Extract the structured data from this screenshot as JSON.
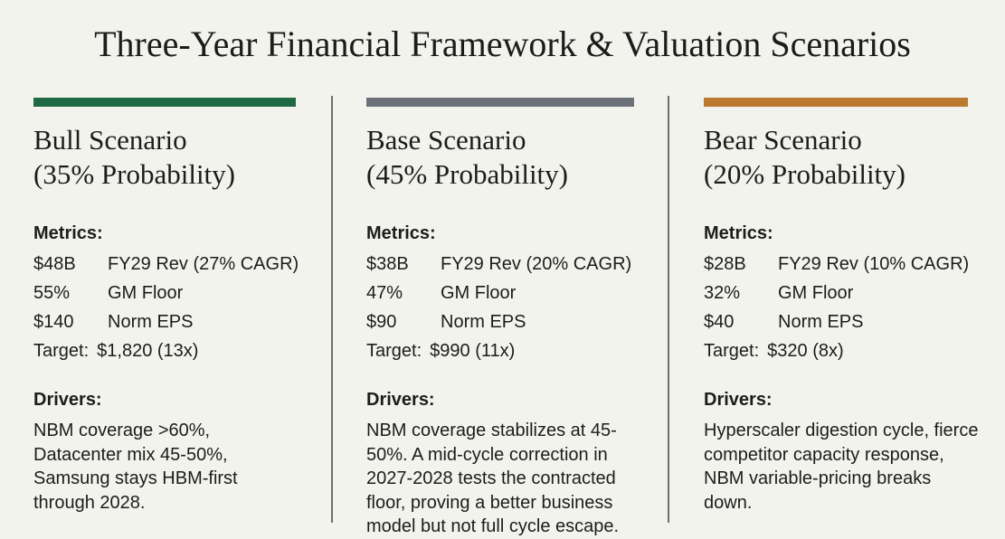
{
  "title": "Three-Year Financial Framework & Valuation Scenarios",
  "colors": {
    "background": "#f3f3ee",
    "divider": "#6f6f6f",
    "bull_accent": "#1f6a45",
    "base_accent": "#6c7078",
    "bear_accent": "#bb7a2e"
  },
  "labels": {
    "metrics_heading": "Metrics:",
    "drivers_heading": "Drivers:",
    "target_label": "Target:"
  },
  "scenarios": [
    {
      "name": "Bull Scenario",
      "probability": "(35% Probability)",
      "metrics": [
        {
          "value": "$48B",
          "label": "FY29 Rev (27% CAGR)"
        },
        {
          "value": "55%",
          "label": "GM Floor"
        },
        {
          "value": "$140",
          "label": "Norm EPS"
        }
      ],
      "target": "$1,820 (13x)",
      "drivers": "NBM coverage >60%, Datacenter mix 45-50%, Samsung stays HBM-first through 2028."
    },
    {
      "name": "Base Scenario",
      "probability": "(45% Probability)",
      "metrics": [
        {
          "value": "$38B",
          "label": "FY29 Rev (20% CAGR)"
        },
        {
          "value": "47%",
          "label": "GM Floor"
        },
        {
          "value": "$90",
          "label": "Norm EPS"
        }
      ],
      "target": "$990 (11x)",
      "drivers": "NBM coverage stabilizes at 45-50%. A mid-cycle correction in 2027-2028 tests the contracted floor, proving a better business model but not full cycle escape."
    },
    {
      "name": "Bear Scenario",
      "probability": "(20% Probability)",
      "metrics": [
        {
          "value": "$28B",
          "label": "FY29 Rev (10% CAGR)"
        },
        {
          "value": "32%",
          "label": "GM Floor"
        },
        {
          "value": "$40",
          "label": "Norm EPS"
        }
      ],
      "target": "$320 (8x)",
      "drivers": "Hyperscaler digestion cycle, fierce competitor capacity response, NBM variable-pricing breaks down."
    }
  ]
}
